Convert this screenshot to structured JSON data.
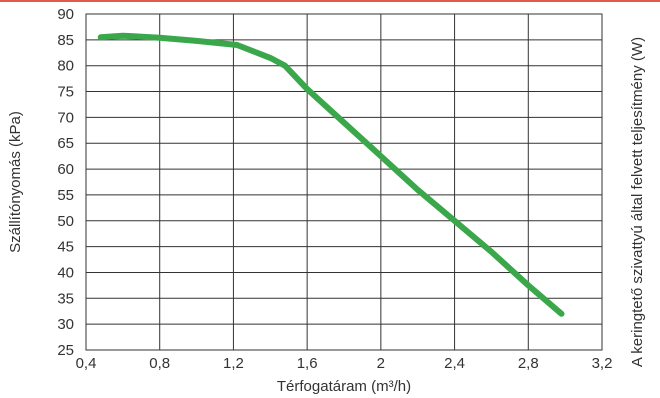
{
  "chart_data": {
    "type": "line",
    "xlabel": "Térfogatáram (m³/h)",
    "ylabel": "Szállítónyomás (kPa)",
    "y2label": "A keringtető szivattyú által felvett teljesítmény (W)",
    "xlim": [
      0.4,
      3.2
    ],
    "ylim": [
      25,
      90
    ],
    "grid": true,
    "x_ticks": [
      0.4,
      0.8,
      1.2,
      1.6,
      2,
      2.4,
      2.8,
      3.2
    ],
    "x_tick_labels": [
      "0,4",
      "0,8",
      "1,2",
      "1,6",
      "2",
      "2,4",
      "2,8",
      "3,2"
    ],
    "y_ticks": [
      25,
      30,
      35,
      40,
      45,
      50,
      55,
      60,
      65,
      70,
      75,
      80,
      85,
      90
    ],
    "y_tick_labels": [
      "25",
      "30",
      "35",
      "40",
      "45",
      "50",
      "55",
      "60",
      "65",
      "70",
      "75",
      "80",
      "85",
      "90"
    ],
    "series": [
      {
        "color": "#3aa84a",
        "x": [
          0.48,
          0.6,
          0.8,
          1.0,
          1.22,
          1.4,
          1.48,
          1.6,
          1.8,
          2.0,
          2.2,
          2.4,
          2.6,
          2.8,
          2.98
        ],
        "y": [
          85.5,
          85.8,
          85.4,
          84.8,
          84.0,
          81.5,
          80.0,
          75.5,
          69.0,
          62.5,
          56.0,
          50.0,
          44.0,
          37.5,
          32.0
        ]
      }
    ]
  },
  "colors": {
    "series": "#3aa84a",
    "grid": "#333333",
    "accent_line": "#e05a4e"
  }
}
